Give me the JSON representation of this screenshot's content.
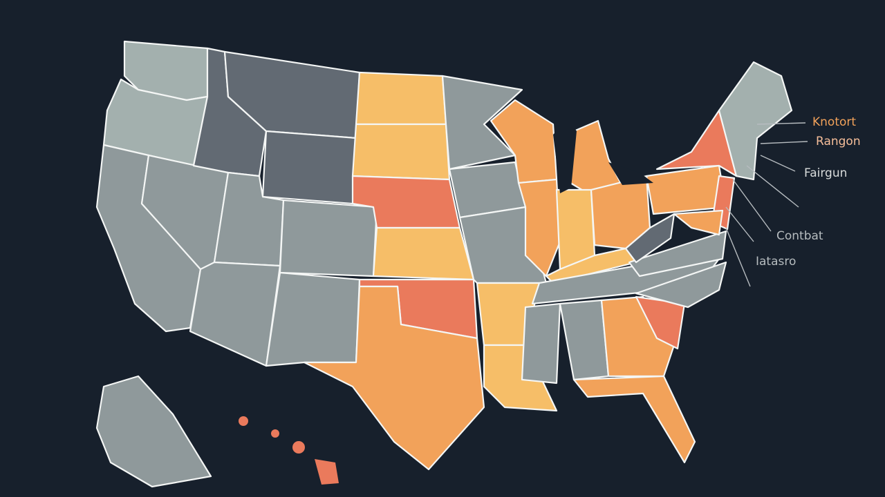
{
  "callouts": [
    "Knotort",
    "Rangon",
    "Fairgun",
    "Contbat",
    "Iatasro"
  ]
}
